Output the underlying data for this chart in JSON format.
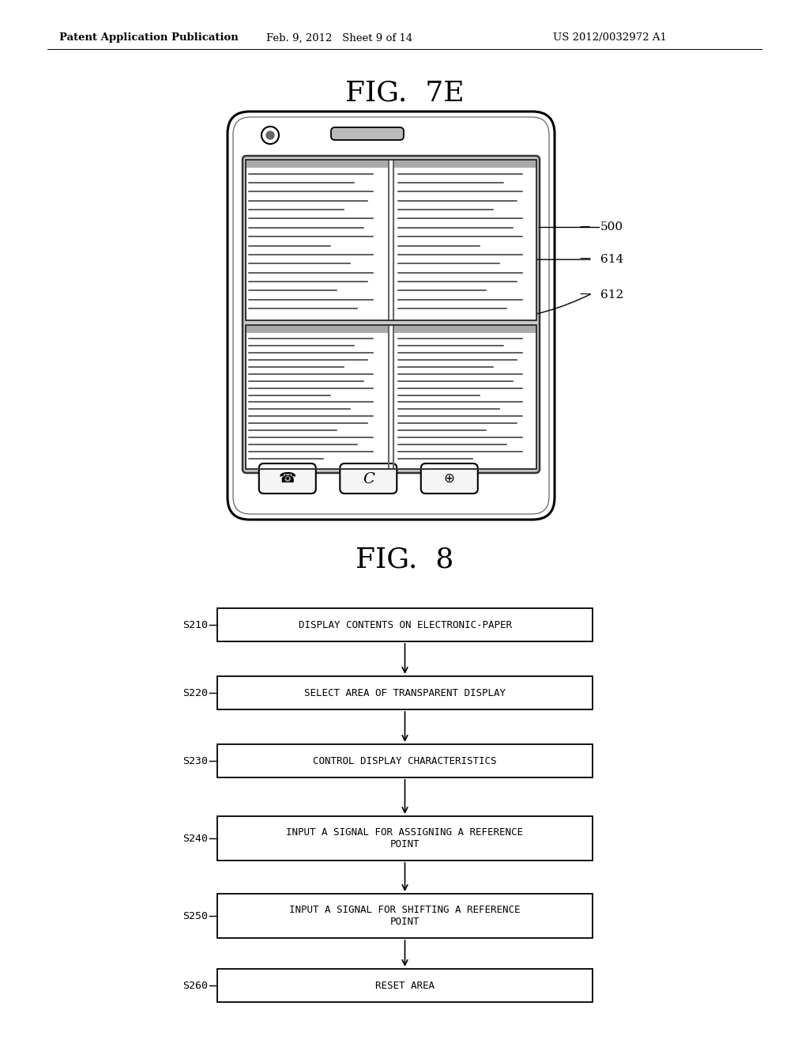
{
  "bg_color": "#ffffff",
  "header_left": "Patent Application Publication",
  "header_mid": "Feb. 9, 2012   Sheet 9 of 14",
  "header_right": "US 2012/0032972 A1",
  "fig7e_title": "FIG.  7E",
  "fig8_title": "FIG.  8",
  "flow_steps": [
    {
      "id": "S210",
      "text": "DISPLAY CONTENTS ON ELECTRONIC-PAPER",
      "lines": 1
    },
    {
      "id": "S220",
      "text": "SELECT AREA OF TRANSPARENT DISPLAY",
      "lines": 1
    },
    {
      "id": "S230",
      "text": "CONTROL DISPLAY CHARACTERISTICS",
      "lines": 1
    },
    {
      "id": "S240",
      "text": "INPUT A SIGNAL FOR ASSIGNING A REFERENCE POINT",
      "lines": 2
    },
    {
      "id": "S250",
      "text": "INPUT A SIGNAL FOR SHIFTING A REFERENCE POINT",
      "lines": 2
    },
    {
      "id": "S260",
      "text": "RESET AREA",
      "lines": 1
    }
  ]
}
